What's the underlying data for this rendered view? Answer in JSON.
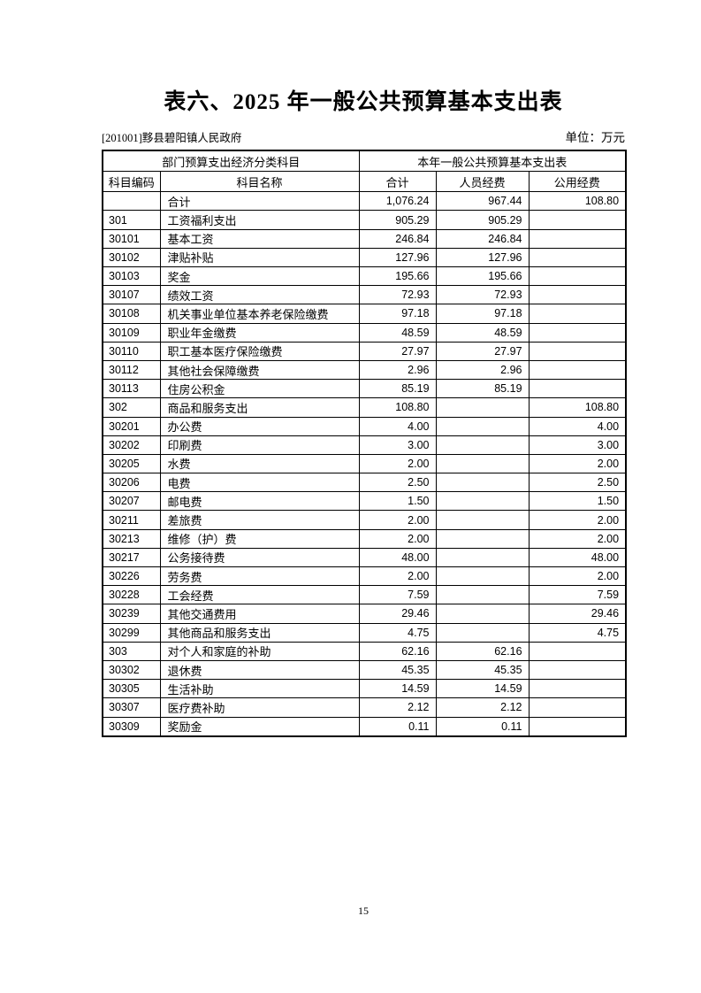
{
  "page": {
    "title": "表六、2025 年一般公共预算基本支出表",
    "org_code": "[201001]黟县碧阳镇人民政府",
    "unit_label": "单位：万元",
    "page_number": "15"
  },
  "table": {
    "group_headers": {
      "left": "部门预算支出经济分类科目",
      "right": "本年一般公共预算基本支出表"
    },
    "columns": [
      "科目编码",
      "科目名称",
      "合计",
      "人员经费",
      "公用经费"
    ],
    "rows": [
      [
        "",
        "合计",
        "1,076.24",
        "967.44",
        "108.80"
      ],
      [
        "301",
        "工资福利支出",
        "905.29",
        "905.29",
        ""
      ],
      [
        "30101",
        "基本工资",
        "246.84",
        "246.84",
        ""
      ],
      [
        "30102",
        "津贴补贴",
        "127.96",
        "127.96",
        ""
      ],
      [
        "30103",
        "奖金",
        "195.66",
        "195.66",
        ""
      ],
      [
        "30107",
        "绩效工资",
        "72.93",
        "72.93",
        ""
      ],
      [
        "30108",
        "机关事业单位基本养老保险缴费",
        "97.18",
        "97.18",
        ""
      ],
      [
        "30109",
        "职业年金缴费",
        "48.59",
        "48.59",
        ""
      ],
      [
        "30110",
        "职工基本医疗保险缴费",
        "27.97",
        "27.97",
        ""
      ],
      [
        "30112",
        "其他社会保障缴费",
        "2.96",
        "2.96",
        ""
      ],
      [
        "30113",
        "住房公积金",
        "85.19",
        "85.19",
        ""
      ],
      [
        "302",
        "商品和服务支出",
        "108.80",
        "",
        "108.80"
      ],
      [
        "30201",
        "办公费",
        "4.00",
        "",
        "4.00"
      ],
      [
        "30202",
        "印刷费",
        "3.00",
        "",
        "3.00"
      ],
      [
        "30205",
        "水费",
        "2.00",
        "",
        "2.00"
      ],
      [
        "30206",
        "电费",
        "2.50",
        "",
        "2.50"
      ],
      [
        "30207",
        "邮电费",
        "1.50",
        "",
        "1.50"
      ],
      [
        "30211",
        "差旅费",
        "2.00",
        "",
        "2.00"
      ],
      [
        "30213",
        "维修（护）费",
        "2.00",
        "",
        "2.00"
      ],
      [
        "30217",
        "公务接待费",
        "48.00",
        "",
        "48.00"
      ],
      [
        "30226",
        "劳务费",
        "2.00",
        "",
        "2.00"
      ],
      [
        "30228",
        "工会经费",
        "7.59",
        "",
        "7.59"
      ],
      [
        "30239",
        "其他交通费用",
        "29.46",
        "",
        "29.46"
      ],
      [
        "30299",
        "其他商品和服务支出",
        "4.75",
        "",
        "4.75"
      ],
      [
        "303",
        "对个人和家庭的补助",
        "62.16",
        "62.16",
        ""
      ],
      [
        "30302",
        "退休费",
        "45.35",
        "45.35",
        ""
      ],
      [
        "30305",
        "生活补助",
        "14.59",
        "14.59",
        ""
      ],
      [
        "30307",
        "医疗费补助",
        "2.12",
        "2.12",
        ""
      ],
      [
        "30309",
        "奖励金",
        "0.11",
        "0.11",
        ""
      ]
    ]
  }
}
